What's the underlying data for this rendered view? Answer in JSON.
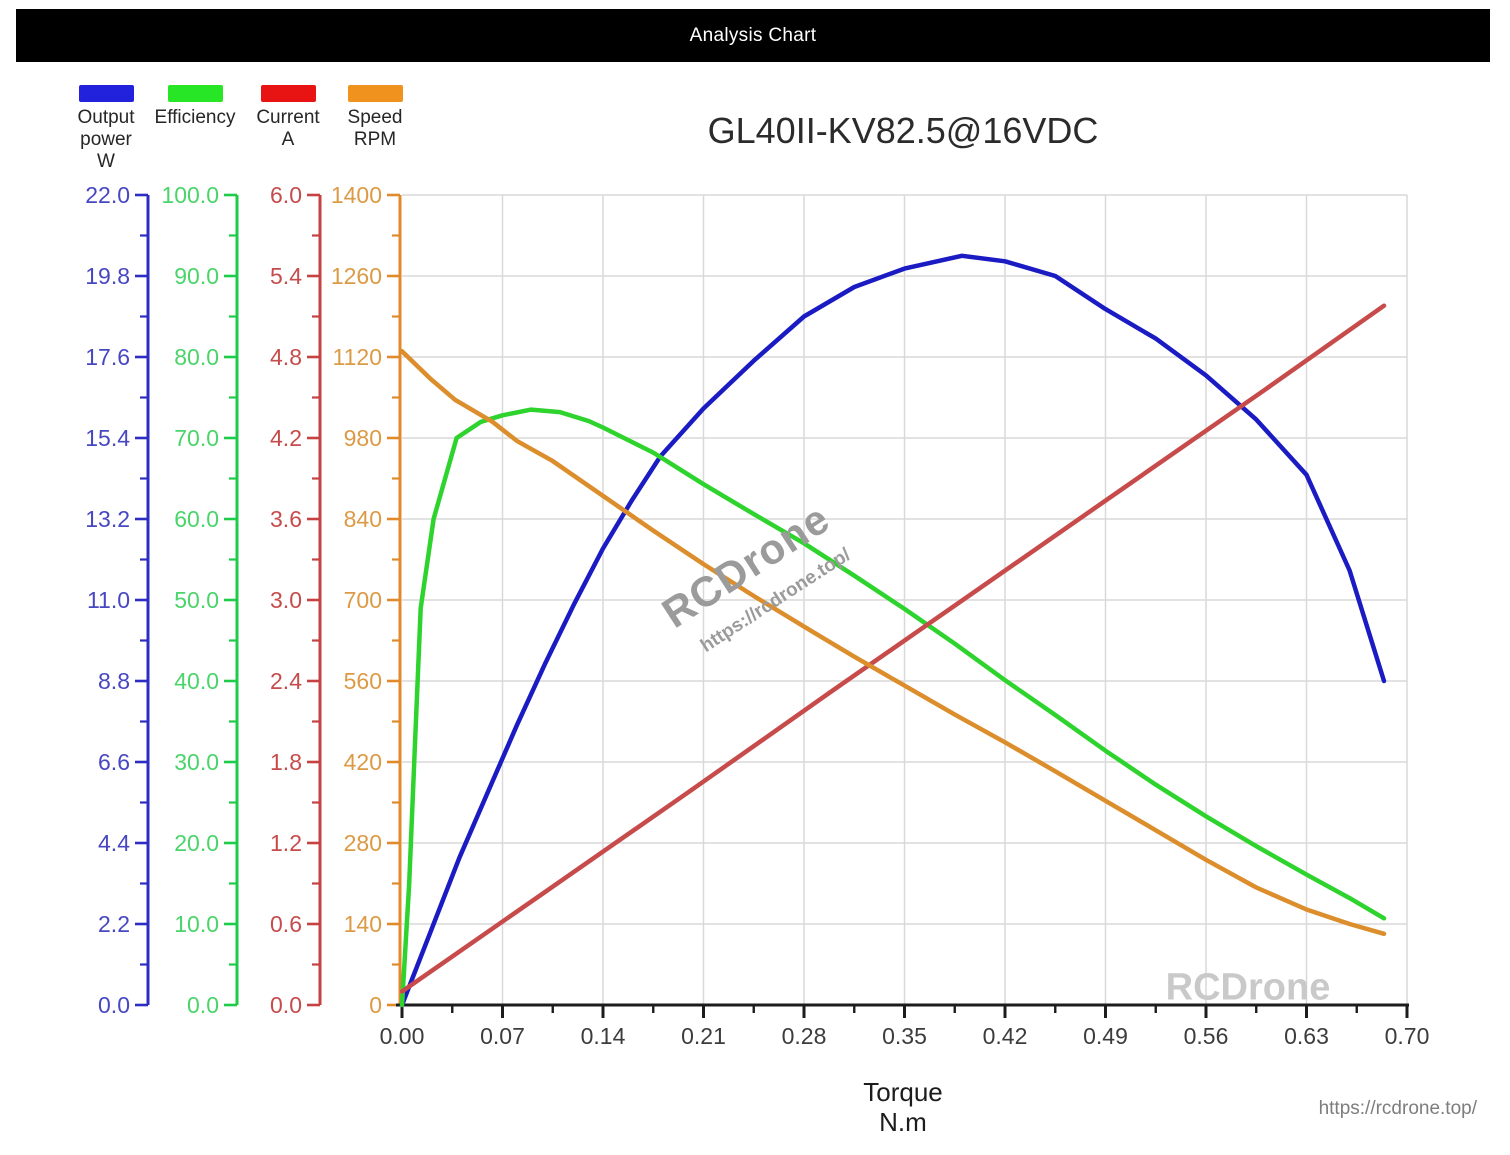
{
  "header": {
    "title": "Analysis Chart"
  },
  "watermarks": {
    "center_text": "RCDrone",
    "center_url": "https://rcdrone.top/",
    "plot_corner_text": "RCDrone",
    "page_url": "https://rcdrone.top/"
  },
  "legend": {
    "items": [
      {
        "id": "output-power",
        "lines": [
          "Output",
          "power",
          "W"
        ],
        "color": "#2222dd"
      },
      {
        "id": "efficiency",
        "lines": [
          "Efficiency"
        ],
        "color": "#26e626"
      },
      {
        "id": "current",
        "lines": [
          "Current",
          "A"
        ],
        "color": "#e81414"
      },
      {
        "id": "speed",
        "lines": [
          "Speed",
          "RPM"
        ],
        "color": "#f0921e"
      }
    ]
  },
  "chart_data": {
    "type": "line",
    "title": "GL40II-KV82.5@16VDC",
    "xlabel": "Torque",
    "xunit": "N.m",
    "xlim": [
      0,
      0.7
    ],
    "grid": true,
    "grid_color": "#d9d9d9",
    "x_axis_color": "#1c1c1c",
    "x_tick_label_color": "#3c3c3c",
    "x_tick_labels": [
      "0.00",
      "0.07",
      "0.14",
      "0.21",
      "0.28",
      "0.35",
      "0.42",
      "0.49",
      "0.56",
      "0.63",
      "0.70"
    ],
    "y_axes": [
      {
        "id": "power",
        "name": "Output power W",
        "max": 22,
        "color": "#2d2dc3",
        "label_color": "#4747c2",
        "tick_labels": [
          "22.0",
          "19.8",
          "17.6",
          "15.4",
          "13.2",
          "11.0",
          "8.8",
          "6.6",
          "4.4",
          "2.2",
          "0.0"
        ]
      },
      {
        "id": "efficiency",
        "name": "Efficiency %",
        "max": 100,
        "color": "#1fcc4a",
        "label_color": "#4ad46a",
        "tick_labels": [
          "100.0",
          "90.0",
          "80.0",
          "70.0",
          "60.0",
          "50.0",
          "40.0",
          "30.0",
          "20.0",
          "10.0",
          "0.0"
        ]
      },
      {
        "id": "current",
        "name": "Current A",
        "max": 6,
        "color": "#c64242",
        "label_color": "#c64c4c",
        "tick_labels": [
          "6.0",
          "5.4",
          "4.8",
          "4.2",
          "3.6",
          "3.0",
          "2.4",
          "1.8",
          "1.2",
          "0.6",
          "0.0"
        ]
      },
      {
        "id": "speed",
        "name": "Speed RPM",
        "max": 1400,
        "color": "#e08a2b",
        "label_color": "#dc9a45",
        "tick_labels": [
          "1400",
          "1260",
          "1120",
          "980",
          "840",
          "700",
          "560",
          "420",
          "280",
          "140",
          "0"
        ]
      }
    ],
    "series": [
      {
        "id": "output-power",
        "name": "Output power W",
        "axis": 0,
        "color": "#1b1bc3",
        "points": [
          [
            0,
            0
          ],
          [
            0.02,
            2.0
          ],
          [
            0.04,
            4.0
          ],
          [
            0.06,
            5.8
          ],
          [
            0.08,
            7.6
          ],
          [
            0.1,
            9.3
          ],
          [
            0.12,
            10.9
          ],
          [
            0.14,
            12.4
          ],
          [
            0.16,
            13.7
          ],
          [
            0.18,
            14.9
          ],
          [
            0.21,
            16.2
          ],
          [
            0.245,
            17.5
          ],
          [
            0.28,
            18.7
          ],
          [
            0.315,
            19.5
          ],
          [
            0.35,
            20.0
          ],
          [
            0.39,
            20.35
          ],
          [
            0.42,
            20.2
          ],
          [
            0.455,
            19.8
          ],
          [
            0.49,
            18.9
          ],
          [
            0.525,
            18.1
          ],
          [
            0.56,
            17.1
          ],
          [
            0.595,
            15.9
          ],
          [
            0.63,
            14.4
          ],
          [
            0.66,
            11.8
          ],
          [
            0.684,
            8.8
          ]
        ]
      },
      {
        "id": "efficiency",
        "name": "Efficiency",
        "axis": 1,
        "color": "#2ed32e",
        "points": [
          [
            0,
            0
          ],
          [
            0.005,
            15
          ],
          [
            0.009,
            32
          ],
          [
            0.013,
            49
          ],
          [
            0.022,
            60
          ],
          [
            0.038,
            70
          ],
          [
            0.055,
            72
          ],
          [
            0.07,
            72.8
          ],
          [
            0.09,
            73.5
          ],
          [
            0.11,
            73.2
          ],
          [
            0.13,
            72.1
          ],
          [
            0.14,
            71.3
          ],
          [
            0.175,
            68.2
          ],
          [
            0.21,
            64.3
          ],
          [
            0.245,
            60.6
          ],
          [
            0.28,
            57.0
          ],
          [
            0.315,
            53.0
          ],
          [
            0.35,
            48.9
          ],
          [
            0.385,
            44.6
          ],
          [
            0.42,
            40.1
          ],
          [
            0.455,
            35.8
          ],
          [
            0.49,
            31.4
          ],
          [
            0.525,
            27.2
          ],
          [
            0.56,
            23.3
          ],
          [
            0.595,
            19.6
          ],
          [
            0.63,
            16.1
          ],
          [
            0.66,
            13.2
          ],
          [
            0.684,
            10.7
          ]
        ]
      },
      {
        "id": "current",
        "name": "Current A",
        "axis": 2,
        "color": "#c74b4b",
        "points": [
          [
            0,
            0.1
          ],
          [
            0.1,
            0.84
          ],
          [
            0.2,
            1.58
          ],
          [
            0.3,
            2.33
          ],
          [
            0.4,
            3.07
          ],
          [
            0.5,
            3.81
          ],
          [
            0.6,
            4.55
          ],
          [
            0.684,
            5.18
          ]
        ]
      },
      {
        "id": "speed",
        "name": "Speed RPM",
        "axis": 3,
        "color": "#dc8e2c",
        "points": [
          [
            0,
            1130
          ],
          [
            0.02,
            1082
          ],
          [
            0.037,
            1046
          ],
          [
            0.063,
            1008
          ],
          [
            0.08,
            975
          ],
          [
            0.105,
            940
          ],
          [
            0.14,
            880
          ],
          [
            0.175,
            820
          ],
          [
            0.21,
            762
          ],
          [
            0.245,
            707
          ],
          [
            0.28,
            654
          ],
          [
            0.315,
            602
          ],
          [
            0.35,
            552
          ],
          [
            0.385,
            502
          ],
          [
            0.42,
            454
          ],
          [
            0.455,
            404
          ],
          [
            0.49,
            353
          ],
          [
            0.525,
            302
          ],
          [
            0.56,
            251
          ],
          [
            0.595,
            203
          ],
          [
            0.63,
            165
          ],
          [
            0.66,
            140
          ],
          [
            0.684,
            123
          ]
        ]
      }
    ]
  }
}
